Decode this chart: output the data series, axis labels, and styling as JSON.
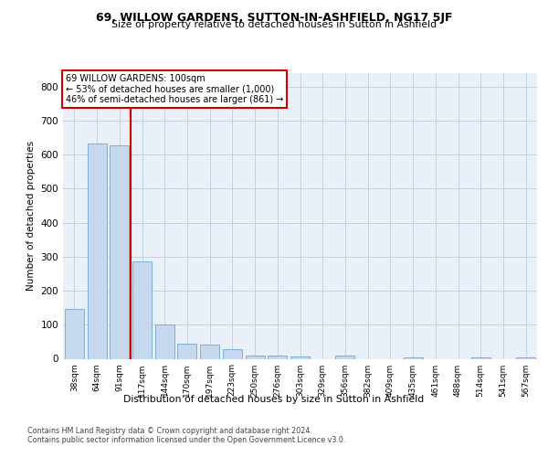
{
  "title1": "69, WILLOW GARDENS, SUTTON-IN-ASHFIELD, NG17 5JF",
  "title2": "Size of property relative to detached houses in Sutton in Ashfield",
  "xlabel": "Distribution of detached houses by size in Sutton in Ashfield",
  "ylabel": "Number of detached properties",
  "footer1": "Contains HM Land Registry data © Crown copyright and database right 2024.",
  "footer2": "Contains public sector information licensed under the Open Government Licence v3.0.",
  "annotation_line1": "69 WILLOW GARDENS: 100sqm",
  "annotation_line2": "← 53% of detached houses are smaller (1,000)",
  "annotation_line3": "46% of semi-detached houses are larger (861) →",
  "bar_color": "#c5d8ed",
  "bar_edge_color": "#6fa8d0",
  "marker_color": "#cc0000",
  "categories": [
    "38sqm",
    "64sqm",
    "91sqm",
    "117sqm",
    "144sqm",
    "170sqm",
    "197sqm",
    "223sqm",
    "250sqm",
    "276sqm",
    "303sqm",
    "329sqm",
    "356sqm",
    "382sqm",
    "409sqm",
    "435sqm",
    "461sqm",
    "488sqm",
    "514sqm",
    "541sqm",
    "567sqm"
  ],
  "values": [
    147,
    633,
    628,
    287,
    100,
    44,
    43,
    27,
    10,
    10,
    8,
    0,
    10,
    0,
    0,
    5,
    0,
    0,
    5,
    0,
    5
  ],
  "ylim": [
    0,
    840
  ],
  "yticks": [
    0,
    100,
    200,
    300,
    400,
    500,
    600,
    700,
    800
  ],
  "vline_x": 2.5,
  "bg_color": "#eaf0f7",
  "grid_color": "#b8cde0"
}
